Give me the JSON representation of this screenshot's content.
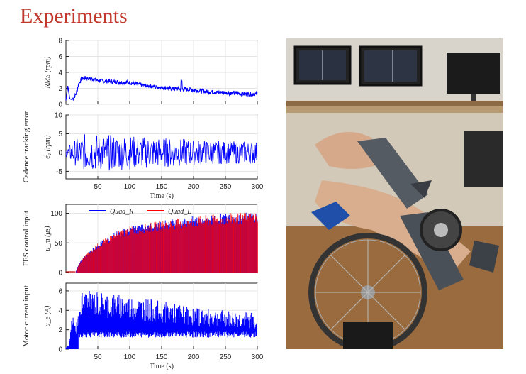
{
  "slide": {
    "title": "Experiments"
  },
  "chart_data": [
    {
      "type": "line",
      "ylabel": "RMS (rpm)",
      "xlim": [
        0,
        300
      ],
      "ylim": [
        0,
        8
      ],
      "yticks": [
        "0",
        "2",
        "4",
        "6",
        "8"
      ],
      "series": [
        {
          "color": "#0000ff",
          "x": [
            0,
            3,
            6,
            9,
            12,
            16,
            20,
            25,
            30,
            40,
            50,
            60,
            80,
            100,
            120,
            140,
            160,
            180,
            200,
            220,
            240,
            260,
            280,
            300
          ],
          "values": [
            0.5,
            2.3,
            0.7,
            0.6,
            0.8,
            1.3,
            2.6,
            3.2,
            3.3,
            3.2,
            3.0,
            2.9,
            2.8,
            2.7,
            2.4,
            2.2,
            2.0,
            1.9,
            1.8,
            1.6,
            1.5,
            1.4,
            1.3,
            1.3
          ]
        }
      ]
    },
    {
      "type": "line",
      "ylabel": "ė₁ (rpm)",
      "outer_label": "Cadence tracking error",
      "xlabel": "Time (s)",
      "xlim": [
        0,
        300
      ],
      "ylim": [
        -7,
        10
      ],
      "yticks": [
        "-5",
        "0",
        "5",
        "10"
      ],
      "xticks": [
        "50",
        "100",
        "150",
        "200",
        "250",
        "300"
      ],
      "series": [
        {
          "color": "#0000ff",
          "x": [
            0,
            10,
            20,
            30,
            50,
            100,
            150,
            200,
            250,
            300
          ],
          "env": [
            1,
            3,
            4,
            5,
            5,
            4.5,
            4,
            3.5,
            3,
            3
          ]
        }
      ]
    },
    {
      "type": "area",
      "ylabel": "u_m (μs)",
      "outer_label": "FES control input",
      "xlim": [
        0,
        300
      ],
      "ylim": [
        0,
        115
      ],
      "yticks": [
        "0",
        "50",
        "100"
      ],
      "legend": "top-center",
      "series": [
        {
          "name": "Quad_R",
          "color": "#0000ff"
        },
        {
          "name": "Quad_L",
          "color": "#ff0000"
        }
      ],
      "x": [
        0,
        15,
        20,
        30,
        50,
        80,
        100,
        150,
        200,
        250,
        300
      ],
      "values": [
        0,
        0,
        15,
        30,
        50,
        70,
        78,
        88,
        95,
        100,
        102
      ]
    },
    {
      "type": "area",
      "ylabel": "u_e (A)",
      "outer_label": "Motor current input",
      "xlabel": "Time (s)",
      "xlim": [
        0,
        300
      ],
      "ylim": [
        0,
        6.8
      ],
      "yticks": [
        "0",
        "2",
        "4",
        "6"
      ],
      "xticks": [
        "50",
        "100",
        "150",
        "200",
        "250",
        "300"
      ],
      "series": [
        {
          "color": "#0000ff",
          "x": [
            0,
            5,
            10,
            15,
            20,
            25,
            50,
            100,
            150,
            200,
            250,
            300
          ],
          "values": [
            0.2,
            0.5,
            4.0,
            2.2,
            4.0,
            6.0,
            6.0,
            5.5,
            5.0,
            4.3,
            4.0,
            3.8
          ]
        }
      ]
    }
  ]
}
